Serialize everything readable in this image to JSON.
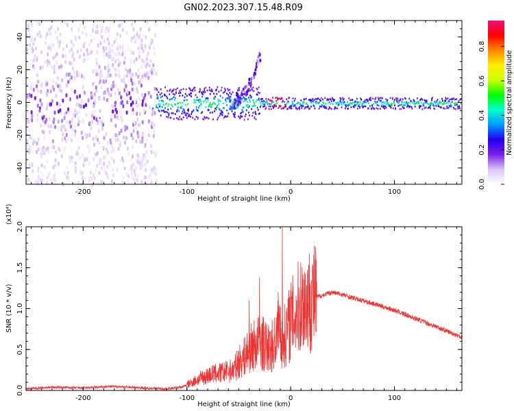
{
  "title": "GN02.2023.307.15.48.R09",
  "colors": {
    "snr_line": "#ee3333",
    "background": "#ffffff",
    "axis": "#000000"
  },
  "chart_data": [
    {
      "type": "heatmap",
      "name": "spectrogram",
      "title": "",
      "xlabel": "Height of straight line (km)",
      "ylabel": "Frequency (Hz)",
      "xlim": [
        -255,
        165
      ],
      "ylim": [
        -50,
        50
      ],
      "xticks": [
        -200,
        -100,
        0,
        100
      ],
      "xtick_labels": [
        "-200",
        "-100",
        "0",
        "100"
      ],
      "yticks": [
        -40,
        -20,
        0,
        20,
        40
      ],
      "ytick_labels": [
        "-40",
        "-20",
        "0",
        "20",
        "40"
      ],
      "colorbar": {
        "label": "Normalized spectral amplitude",
        "range": [
          0,
          0.95
        ],
        "ticks": [
          0.0,
          0.2,
          0.4,
          0.6,
          0.8
        ],
        "tick_labels": [
          "0.0",
          "0.2",
          "0.4",
          "0.6",
          "0.8"
        ],
        "colormap": [
          "#ffffff",
          "#d8c6f5",
          "#7a1fe6",
          "#2200ee",
          "#0099ff",
          "#00ffcc",
          "#00ff00",
          "#ccff00",
          "#ffee00",
          "#ff8800",
          "#ff0000",
          "#ee1177"
        ]
      },
      "features": [
        {
          "region": "noise",
          "x_range": [
            -255,
            -130
          ],
          "freq_spread": 50,
          "level": 0.15
        },
        {
          "region": "band-rising-tail",
          "x_range": [
            -60,
            -30
          ],
          "freq_from": 0,
          "freq_to": 30,
          "level": 0.2
        },
        {
          "region": "central-band",
          "x_range": [
            -130,
            165
          ],
          "freq_center": 0,
          "level": 0.45
        }
      ]
    },
    {
      "type": "line",
      "name": "snr",
      "title": "",
      "xlabel": "Height of straight line (km)",
      "ylabel": "SNR (10 * v/v)",
      "y_multiplier": "(x10⁴)",
      "xlim": [
        -255,
        165
      ],
      "ylim": [
        0,
        2.0
      ],
      "xticks": [
        -200,
        -100,
        0,
        100
      ],
      "xtick_labels": [
        "-200",
        "-100",
        "0",
        "100"
      ],
      "yticks": [
        0.0,
        0.5,
        1.0,
        1.5,
        2.0
      ],
      "ytick_labels": [
        "0.0",
        "0.5",
        "1.0",
        "1.5",
        "2.0"
      ],
      "series": [
        {
          "x": [
            -255,
            -230,
            -200,
            -170,
            -140,
            -120,
            -105,
            -95,
            -85,
            -75,
            -65,
            -55,
            -50,
            -45,
            -40,
            -35,
            -30,
            -25,
            -20,
            -15,
            -10,
            -8,
            -5,
            0,
            5,
            10,
            20,
            30,
            40,
            50,
            60,
            80,
            100,
            120,
            140,
            165
          ],
          "y": [
            0.02,
            0.04,
            0.03,
            0.05,
            0.03,
            0.02,
            0.04,
            0.1,
            0.16,
            0.2,
            0.22,
            0.25,
            0.35,
            0.4,
            0.5,
            0.55,
            0.6,
            0.55,
            0.5,
            0.6,
            0.8,
            0.55,
            0.7,
            0.85,
            0.95,
            1.05,
            1.12,
            1.16,
            1.2,
            1.17,
            1.13,
            1.06,
            0.98,
            0.88,
            0.78,
            0.65
          ]
        }
      ],
      "spikes": [
        {
          "x": -8,
          "y": 2.0
        },
        {
          "x": -30,
          "y": 1.38
        },
        {
          "x": -12,
          "y": 1.2
        },
        {
          "x": -40,
          "y": 1.1
        }
      ]
    }
  ]
}
